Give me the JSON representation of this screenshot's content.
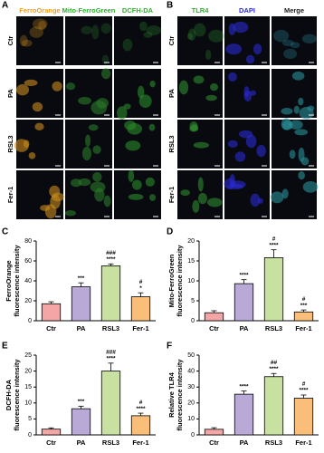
{
  "image_panels": [
    {
      "label": "A",
      "columns": [
        "FerroOrange",
        "Mito-FerroGreen",
        "DCFH-DA"
      ],
      "column_colors": [
        "#f0a020",
        "#2fb02f",
        "#2fb02f"
      ],
      "rows": [
        "Ctr",
        "PA",
        "RSL3",
        "Fer-1"
      ]
    },
    {
      "label": "B",
      "columns": [
        "TLR4",
        "DAPI",
        "Merge"
      ],
      "column_colors": [
        "#2fb02f",
        "#2a2ae0",
        "#222222"
      ],
      "rows": [
        "Ctr",
        "PA",
        "RSL3",
        "Fer-1"
      ]
    }
  ],
  "chart_data": [
    {
      "type": "bar",
      "panel": "C",
      "ylabel": [
        "FerroOrange",
        "fluorescence intensity"
      ],
      "categories": [
        "Ctr",
        "PA",
        "RSL3",
        "Fer-1"
      ],
      "values": [
        17,
        34,
        55,
        24
      ],
      "errors": [
        2,
        4,
        2,
        4
      ],
      "stars": [
        null,
        "***",
        "****",
        "*"
      ],
      "hashes": [
        null,
        null,
        "###",
        "#"
      ],
      "colors": [
        "#f4a6a6",
        "#b9a9d6",
        "#c8e0a0",
        "#f9bf7a"
      ],
      "ylim": [
        0,
        80
      ],
      "yticks": [
        0,
        20,
        40,
        60,
        80
      ]
    },
    {
      "type": "bar",
      "panel": "D",
      "ylabel": [
        "Mito-FerroGreen",
        "fluorescence intensity"
      ],
      "categories": [
        "Ctr",
        "PA",
        "RSL3",
        "Fer-1"
      ],
      "values": [
        2,
        9.3,
        15.8,
        2.2
      ],
      "errors": [
        0.5,
        1,
        2,
        0.5
      ],
      "stars": [
        null,
        "****",
        "****",
        "***"
      ],
      "hashes": [
        null,
        null,
        "#",
        "#"
      ],
      "colors": [
        "#f4a6a6",
        "#b9a9d6",
        "#c8e0a0",
        "#f9bf7a"
      ],
      "ylim": [
        0,
        20
      ],
      "yticks": [
        0,
        5,
        10,
        15,
        20
      ]
    },
    {
      "type": "bar",
      "panel": "E",
      "ylabel": [
        "DCFH-DA",
        "fluorescence intensity"
      ],
      "categories": [
        "Ctr",
        "PA",
        "RSL3",
        "Fer-1"
      ],
      "values": [
        1.8,
        8.2,
        20,
        6
      ],
      "errors": [
        0.4,
        0.8,
        2.5,
        0.8
      ],
      "stars": [
        null,
        "***",
        "****",
        "****"
      ],
      "hashes": [
        null,
        null,
        "###",
        "#"
      ],
      "colors": [
        "#f4a6a6",
        "#b9a9d6",
        "#c8e0a0",
        "#f9bf7a"
      ],
      "ylim": [
        0,
        25
      ],
      "yticks": [
        0,
        5,
        10,
        15,
        20,
        25
      ]
    },
    {
      "type": "bar",
      "panel": "F",
      "ylabel": [
        "Relative TLR4",
        "fluorescence intensity"
      ],
      "categories": [
        "Ctr",
        "PA",
        "RSL3",
        "Fer-1"
      ],
      "values": [
        3.5,
        25.5,
        36.5,
        23
      ],
      "errors": [
        1,
        2,
        2,
        2
      ],
      "stars": [
        null,
        "****",
        "****",
        "****"
      ],
      "hashes": [
        null,
        null,
        "##",
        "#"
      ],
      "colors": [
        "#f4a6a6",
        "#b9a9d6",
        "#c8e0a0",
        "#f9bf7a"
      ],
      "ylim": [
        0,
        50
      ],
      "yticks": [
        0,
        10,
        20,
        30,
        40,
        50
      ]
    }
  ]
}
